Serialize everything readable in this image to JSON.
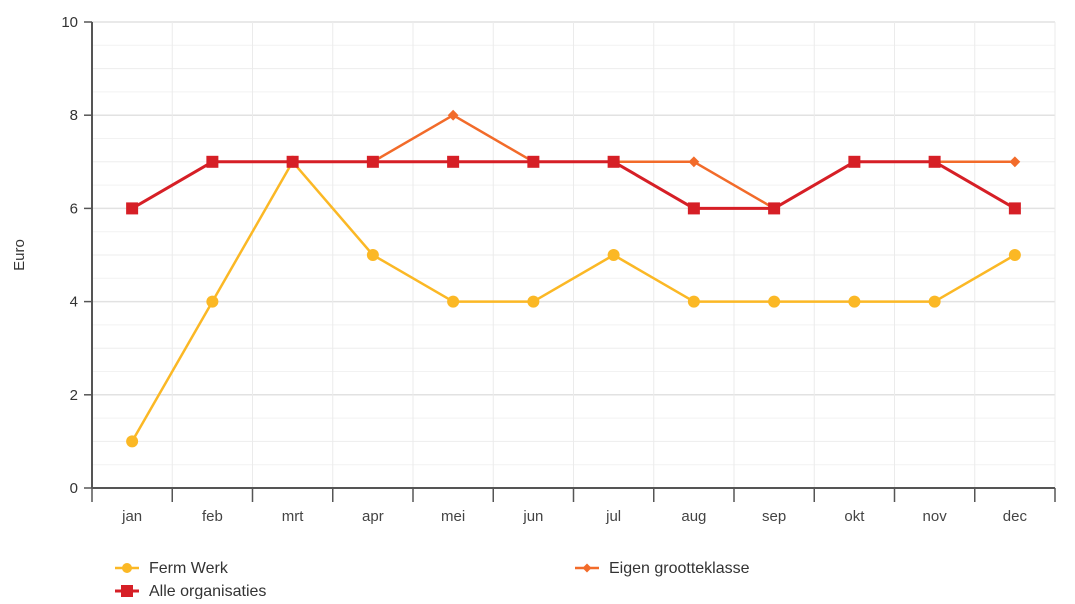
{
  "chart_data": {
    "type": "line",
    "title": "",
    "xlabel": "",
    "ylabel": "Euro",
    "ylim": [
      0,
      10
    ],
    "yticks": [
      0,
      2,
      4,
      6,
      8,
      10
    ],
    "categories": [
      "jan",
      "feb",
      "mrt",
      "apr",
      "mei",
      "jun",
      "jul",
      "aug",
      "sep",
      "okt",
      "nov",
      "dec"
    ],
    "grid": true,
    "legend_position": "bottom-left",
    "series": [
      {
        "name": "Ferm Werk",
        "color": "#fbb825",
        "marker": "circle",
        "values": [
          1,
          4,
          7,
          5,
          4,
          4,
          5,
          4,
          4,
          4,
          4,
          5
        ]
      },
      {
        "name": "Eigen grootteklasse",
        "color": "#f26b2a",
        "marker": "diamond",
        "values": [
          6,
          7,
          7,
          7,
          8,
          7,
          7,
          7,
          6,
          7,
          7,
          7
        ]
      },
      {
        "name": "Alle organisaties",
        "color": "#d61f26",
        "marker": "square",
        "values": [
          6,
          7,
          7,
          7,
          7,
          7,
          7,
          6,
          6,
          7,
          7,
          6
        ]
      }
    ]
  }
}
